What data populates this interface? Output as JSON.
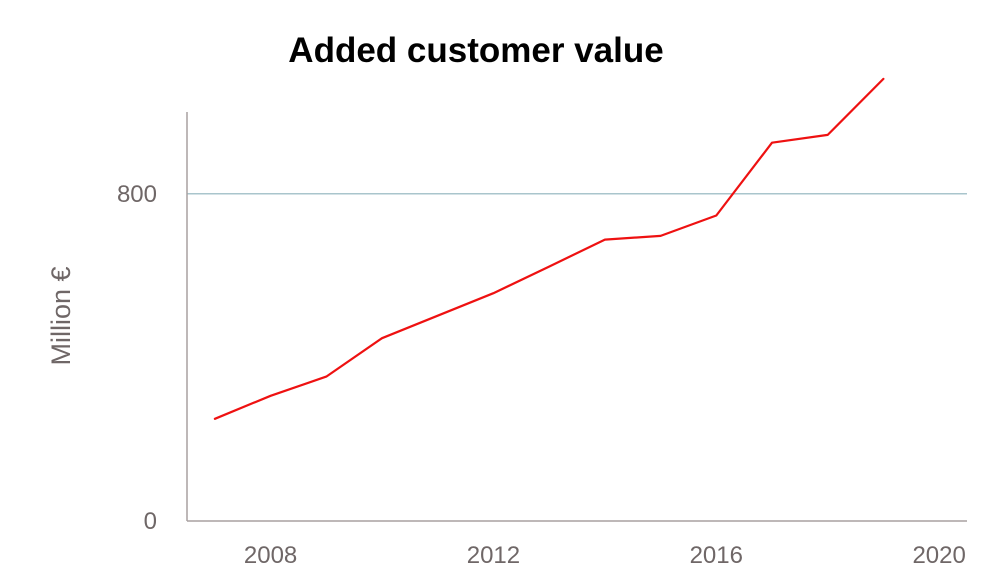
{
  "chart_data": {
    "type": "line",
    "title": "Added customer value",
    "xlabel": "",
    "ylabel": "Million €",
    "xlim": [
      2006.5,
      2020.5
    ],
    "ylim": [
      0,
      1000
    ],
    "x_ticks": [
      2008,
      2012,
      2016,
      2020
    ],
    "y_ticks": [
      0,
      800
    ],
    "gridlines_y": [
      800
    ],
    "grid": true,
    "legend": "none",
    "colors": {
      "line": "#ee1111",
      "gridline": "#a9c5cc",
      "axis": "#a8a0a0",
      "tick_text": "#6f6767",
      "title": "#000000"
    },
    "series": [
      {
        "x": [
          2007,
          2008,
          2009,
          2010,
          2011,
          2012,
          2013,
          2014,
          2015,
          2016,
          2017,
          2018,
          2019
        ],
        "y": [
          250,
          306,
          353,
          447,
          502,
          557,
          622,
          688,
          697,
          747,
          925,
          944,
          1081
        ]
      }
    ]
  }
}
